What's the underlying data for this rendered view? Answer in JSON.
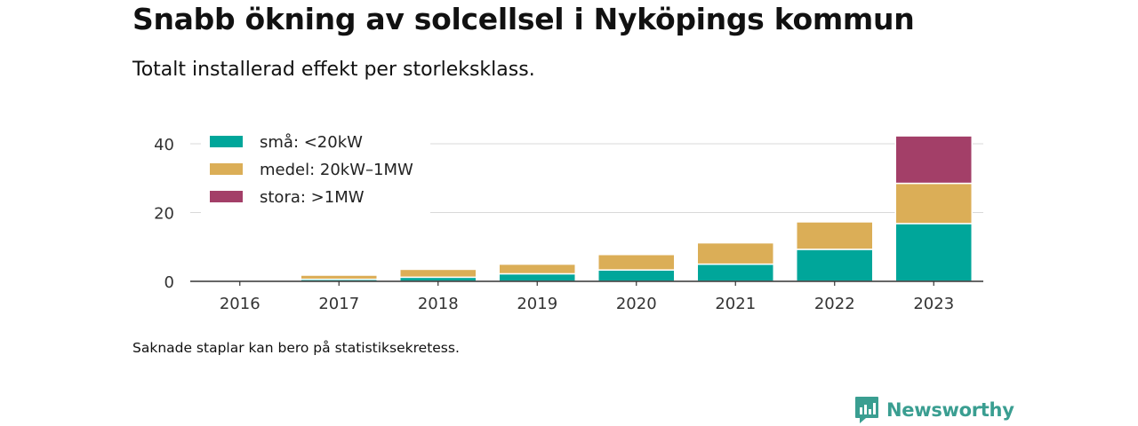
{
  "title": "Snabb ökning av solcellsel i Nyköpings kommun",
  "subtitle": "Totalt installerad effekt per storleksklass.",
  "footnote": "Saknade staplar kan bero på statistiksekretess.",
  "brand": {
    "name": "Newsworthy",
    "icon": "newsworthy-logo-icon",
    "color": "#3a9e91"
  },
  "chart_data": {
    "type": "bar",
    "stacked": true,
    "categories": [
      "2016",
      "2017",
      "2018",
      "2019",
      "2020",
      "2021",
      "2022",
      "2023"
    ],
    "series": [
      {
        "name": "små: <20kW",
        "color": "#00a69a",
        "values": [
          0.3,
          0.6,
          1.2,
          2.2,
          3.3,
          5.0,
          9.3,
          16.8
        ]
      },
      {
        "name": "medel: 20kW–1MW",
        "color": "#dbae57",
        "values": [
          0,
          1.2,
          2.3,
          2.8,
          4.5,
          6.2,
          8.0,
          11.7
        ]
      },
      {
        "name": "stora: >1MW",
        "color": "#a33f68",
        "values": [
          0,
          0,
          0,
          0,
          0,
          0,
          0,
          13.8
        ]
      }
    ],
    "y_ticks": [
      0,
      20,
      40
    ],
    "ylim": [
      0,
      44
    ],
    "grid": true,
    "legend_position": "top-left"
  }
}
